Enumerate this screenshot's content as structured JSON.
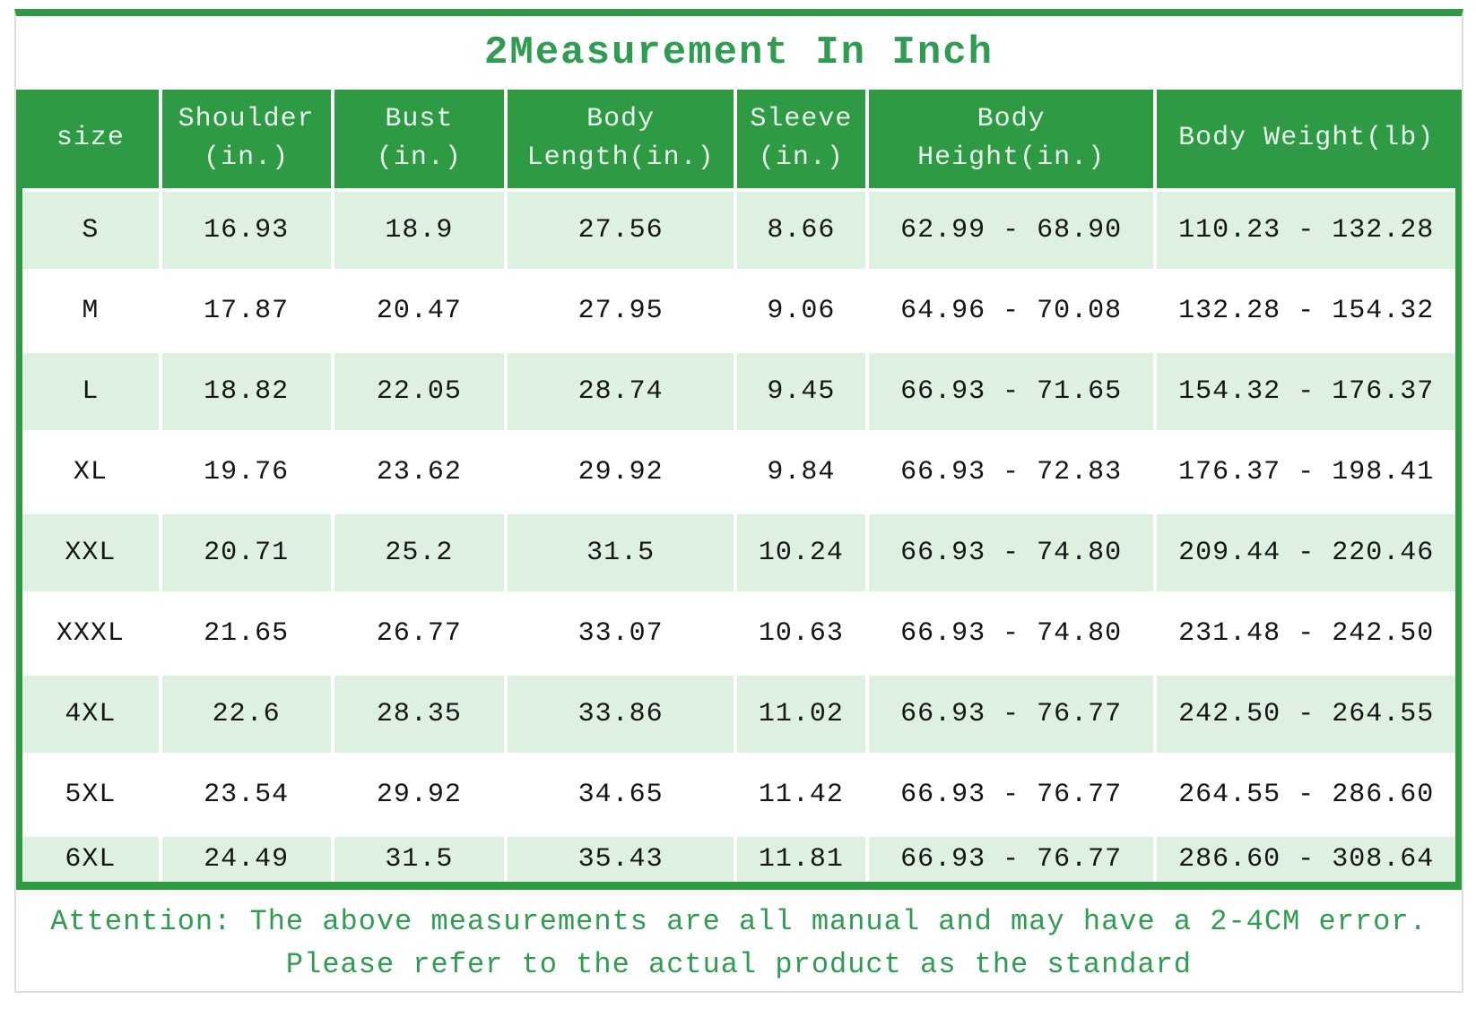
{
  "title": "2Measurement In Inch",
  "theme": {
    "table_green": "#2e9b44",
    "light_row_green": "#def1e1",
    "text_green": "#2f9d51",
    "header_text": "#e8f7ee",
    "body_text": "#151515",
    "card_border_gray": "#dededb"
  },
  "table": {
    "columns": [
      {
        "id": "size",
        "line1": "size",
        "line2": ""
      },
      {
        "id": "shoulder",
        "line1": "Shoulder",
        "line2": "(in.)"
      },
      {
        "id": "bust",
        "line1": "Bust",
        "line2": "(in.)"
      },
      {
        "id": "body-length",
        "line1": "Body",
        "line2": "Length(in.)"
      },
      {
        "id": "sleeve",
        "line1": "Sleeve",
        "line2": "(in.)"
      },
      {
        "id": "body-height",
        "line1": "Body",
        "line2": "Height(in.)"
      },
      {
        "id": "body-weight",
        "line1": "Body Weight(lb)",
        "line2": ""
      }
    ],
    "rows": [
      {
        "cells": [
          "S",
          "16.93",
          "18.9",
          "27.56",
          "8.66",
          "62.99 - 68.90",
          "110.23 - 132.28"
        ]
      },
      {
        "cells": [
          "M",
          "17.87",
          "20.47",
          "27.95",
          "9.06",
          "64.96 - 70.08",
          "132.28 - 154.32"
        ]
      },
      {
        "cells": [
          "L",
          "18.82",
          "22.05",
          "28.74",
          "9.45",
          "66.93 - 71.65",
          "154.32 - 176.37"
        ]
      },
      {
        "cells": [
          "XL",
          "19.76",
          "23.62",
          "29.92",
          "9.84",
          "66.93 - 72.83",
          "176.37 - 198.41"
        ]
      },
      {
        "cells": [
          "XXL",
          "20.71",
          "25.2",
          "31.5",
          "10.24",
          "66.93 - 74.80",
          "209.44 - 220.46"
        ]
      },
      {
        "cells": [
          "XXXL",
          "21.65",
          "26.77",
          "33.07",
          "10.63",
          "66.93 - 74.80",
          "231.48 - 242.50"
        ]
      },
      {
        "cells": [
          "4XL",
          "22.6",
          "28.35",
          "33.86",
          "11.02",
          "66.93 - 76.77",
          "242.50 - 264.55"
        ]
      },
      {
        "cells": [
          "5XL",
          "23.54",
          "29.92",
          "34.65",
          "11.42",
          "66.93 - 76.77",
          "264.55 - 286.60"
        ]
      },
      {
        "cells": [
          "6XL",
          "24.49",
          "31.5",
          "35.43",
          "11.81",
          "66.93 - 76.77",
          "286.60 - 308.64"
        ]
      }
    ]
  },
  "note": {
    "line1": "Attention: The above measurements are all manual and may have a 2-4CM error.",
    "line2": "Please refer to the actual product as the standard"
  }
}
